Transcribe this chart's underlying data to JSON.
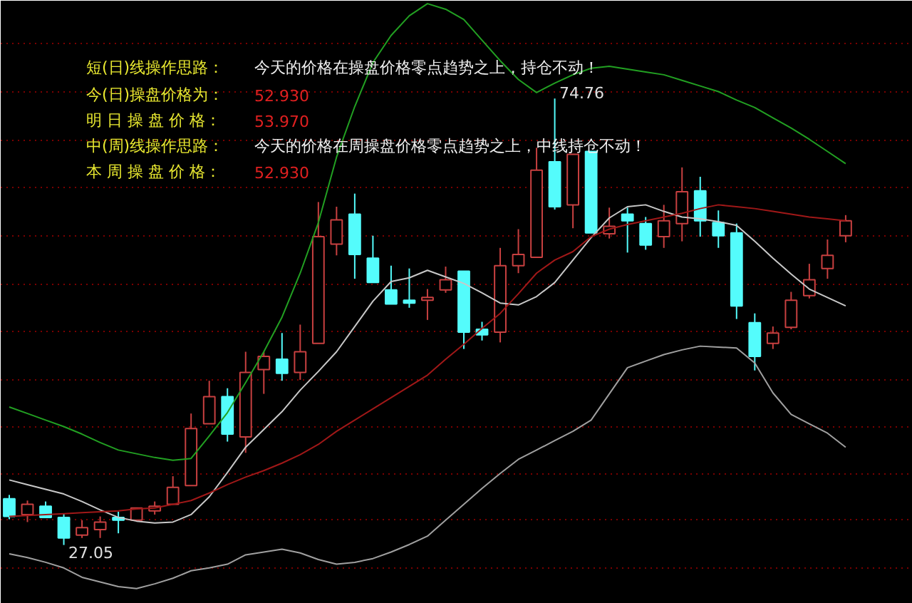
{
  "chart_data": {
    "type": "candlestick",
    "annotations": [
      "短(日)线操作思路：",
      "今天的价格在操盘价格零点趋势之上，持仓不动！",
      "今(日)操盘价格为：",
      "52.930",
      "明 日 操 盘 价 格：",
      "53.970",
      "中(周)线操作思路：",
      "今天的价格在周操盘价格零点趋势之上，中线持仓不动！",
      "本 周 操 盘 价 格：",
      "52.930",
      "74.76",
      "27.05"
    ],
    "categories": [
      null,
      null,
      null,
      null,
      null,
      null,
      null,
      null,
      null,
      null,
      null,
      null,
      null,
      null,
      null,
      null,
      null,
      null,
      null,
      null,
      null,
      null,
      null,
      null,
      null,
      null,
      null,
      null,
      null,
      null,
      null,
      null,
      null,
      null,
      null,
      null,
      null,
      null,
      null,
      null,
      null,
      null,
      null,
      null,
      null,
      null,
      null
    ],
    "ohlc": [
      [
        32.0,
        32.4,
        29.8,
        30.1
      ],
      [
        30.3,
        31.8,
        29.5,
        31.4
      ],
      [
        31.2,
        31.7,
        30.0,
        30.0
      ],
      [
        30.0,
        30.4,
        27.05,
        27.8
      ],
      [
        28.1,
        29.7,
        27.8,
        28.9
      ],
      [
        28.7,
        30.1,
        27.8,
        29.5
      ],
      [
        30.0,
        30.6,
        28.3,
        29.7
      ],
      [
        29.7,
        31.0,
        29.7,
        31.0
      ],
      [
        30.7,
        31.7,
        30.3,
        31.2
      ],
      [
        31.4,
        34.4,
        31.4,
        33.2
      ],
      [
        33.4,
        41.1,
        33.4,
        39.5
      ],
      [
        40.0,
        44.6,
        40.0,
        42.9
      ],
      [
        42.9,
        43.8,
        38.1,
        38.9
      ],
      [
        38.6,
        47.7,
        36.9,
        45.5
      ],
      [
        45.8,
        47.7,
        43.2,
        47.2
      ],
      [
        46.9,
        49.7,
        44.6,
        45.4
      ],
      [
        45.5,
        50.6,
        44.7,
        47.7
      ],
      [
        48.6,
        63.7,
        48.6,
        60.0
      ],
      [
        59.2,
        63.2,
        58.0,
        61.8
      ],
      [
        62.4,
        64.6,
        55.5,
        58.1
      ],
      [
        57.7,
        60.1,
        55.1,
        55.1
      ],
      [
        54.3,
        56.9,
        52.8,
        52.8
      ],
      [
        53.2,
        56.6,
        52.4,
        52.9
      ],
      [
        53.2,
        54.4,
        51.1,
        53.5
      ],
      [
        54.3,
        56.8,
        54.0,
        55.4
      ],
      [
        56.3,
        56.3,
        48.0,
        49.8
      ],
      [
        50.1,
        50.9,
        48.9,
        49.5
      ],
      [
        49.8,
        58.8,
        48.7,
        56.9
      ],
      [
        56.9,
        60.8,
        56.1,
        58.1
      ],
      [
        57.8,
        69.5,
        57.8,
        67.1
      ],
      [
        68.0,
        74.76,
        62.9,
        63.2
      ],
      [
        63.4,
        68.8,
        60.9,
        68.8
      ],
      [
        69.1,
        69.1,
        60.4,
        60.4
      ],
      [
        60.3,
        63.1,
        59.8,
        61.1
      ],
      [
        62.4,
        63.1,
        58.3,
        61.7
      ],
      [
        61.4,
        62.1,
        58.6,
        59.1
      ],
      [
        60.0,
        63.4,
        58.8,
        61.7
      ],
      [
        61.4,
        67.4,
        59.5,
        64.8
      ],
      [
        64.9,
        66.4,
        60.0,
        61.7
      ],
      [
        61.5,
        62.8,
        58.8,
        60.1
      ],
      [
        60.4,
        61.4,
        51.2,
        52.6
      ],
      [
        50.8,
        51.8,
        45.7,
        47.2
      ],
      [
        48.6,
        50.4,
        48.0,
        49.7
      ],
      [
        50.3,
        54.1,
        50.1,
        53.2
      ],
      [
        53.7,
        57.1,
        53.4,
        55.4
      ],
      [
        56.6,
        59.7,
        55.5,
        58.0
      ],
      [
        60.1,
        62.3,
        59.4,
        61.7
      ]
    ],
    "colors": [
      "#54fcfc",
      "#c84040",
      "#54fcfc",
      "#54fcfc",
      "#c84040",
      "#c84040",
      "#54fcfc",
      "#c84040",
      "#c84040",
      "#c84040",
      "#c84040",
      "#c84040",
      "#54fcfc",
      "#c84040",
      "#c84040",
      "#54fcfc",
      "#c84040",
      "#c84040",
      "#c84040",
      "#54fcfc",
      "#54fcfc",
      "#54fcfc",
      "#54fcfc",
      "#c84040",
      "#c84040",
      "#54fcfc",
      "#54fcfc",
      "#c84040",
      "#c84040",
      "#c84040",
      "#54fcfc",
      "#c84040",
      "#54fcfc",
      "#c84040",
      "#54fcfc",
      "#54fcfc",
      "#c84040",
      "#c84040",
      "#54fcfc",
      "#54fcfc",
      "#54fcfc",
      "#54fcfc",
      "#c84040",
      "#c84040",
      "#c84040",
      "#c84040",
      "#c84040"
    ],
    "series": [
      {
        "type": "line",
        "color": "#22a022",
        "values": [
          41.8,
          41.1,
          40.4,
          39.7,
          38.9,
          38.0,
          37.2,
          36.8,
          36.4,
          36.1,
          36.3,
          38.7,
          41.2,
          44.4,
          47.7,
          51.4,
          56.1,
          61.5,
          68.5,
          73.9,
          78.6,
          81.5,
          83.6,
          84.9,
          84.3,
          83.2,
          81.0,
          78.8,
          76.8,
          75.4,
          76.4,
          77.3,
          78.0,
          78.2,
          77.9,
          77.6,
          77.3,
          76.7,
          76.1,
          75.5,
          74.6,
          73.8,
          72.7,
          71.6,
          70.4,
          69.1,
          67.8
        ]
      },
      {
        "type": "line",
        "color": "#c8c8c8",
        "values": [
          34.0,
          33.5,
          33.0,
          32.5,
          31.7,
          30.8,
          30.0,
          29.6,
          29.4,
          29.5,
          30.3,
          32.2,
          34.8,
          37.5,
          39.4,
          41.3,
          43.6,
          45.6,
          47.7,
          50.4,
          53.1,
          55.2,
          55.6,
          56.4,
          55.7,
          55.0,
          54.0,
          52.9,
          52.7,
          53.6,
          55.1,
          57.5,
          59.9,
          62.0,
          63.2,
          63.4,
          62.7,
          62.1,
          61.9,
          61.6,
          61.2,
          59.5,
          57.7,
          56.0,
          54.4,
          53.5,
          52.6
        ]
      },
      {
        "type": "line",
        "color": "#a01818",
        "values": [
          30.1,
          30.2,
          30.3,
          30.4,
          30.5,
          30.6,
          30.7,
          30.9,
          31.0,
          31.4,
          31.8,
          32.6,
          33.5,
          34.3,
          35.0,
          35.8,
          36.7,
          37.8,
          39.2,
          40.4,
          41.6,
          42.8,
          44.0,
          45.2,
          46.9,
          48.5,
          50.2,
          51.8,
          53.9,
          56.1,
          57.5,
          58.4,
          60.0,
          60.8,
          61.3,
          61.7,
          62.1,
          62.5,
          63.0,
          63.4,
          63.2,
          63.0,
          62.7,
          62.4,
          62.1,
          61.9,
          61.7
        ]
      },
      {
        "type": "line",
        "color": "#a0a0a0",
        "values": [
          26.1,
          25.7,
          25.2,
          24.6,
          23.6,
          23.1,
          22.6,
          22.4,
          22.9,
          23.5,
          24.3,
          24.6,
          25.0,
          26.0,
          26.3,
          26.6,
          26.2,
          25.5,
          25.0,
          25.2,
          25.6,
          26.3,
          27.1,
          28.0,
          29.7,
          31.4,
          33.1,
          34.7,
          36.2,
          37.2,
          38.2,
          39.2,
          40.4,
          43.2,
          46.0,
          46.7,
          47.4,
          47.9,
          48.3,
          48.2,
          48.1,
          46.5,
          43.3,
          41.0,
          40.0,
          39.0,
          37.5
        ]
      }
    ],
    "grid": "y",
    "yticks": [
      {
        "value": 24.6,
        "label": null
      },
      {
        "value": 29.7,
        "label": null
      },
      {
        "value": 34.7,
        "label": null
      },
      {
        "value": 39.7,
        "label": null
      },
      {
        "value": 44.7,
        "label": null
      },
      {
        "value": 49.8,
        "label": null
      },
      {
        "value": 54.9,
        "label": null
      },
      {
        "value": 60.1,
        "label": null
      },
      {
        "value": 65.2,
        "label": null
      },
      {
        "value": 70.3,
        "label": null
      },
      {
        "value": 75.5,
        "label": null
      },
      {
        "value": 80.6,
        "label": null
      }
    ]
  }
}
